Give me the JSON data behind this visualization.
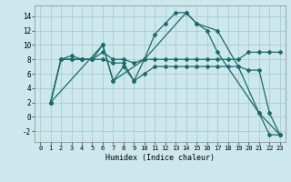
{
  "title": "",
  "xlabel": "Humidex (Indice chaleur)",
  "bg_color": "#cce8ec",
  "grid_color": "#aacccc",
  "line_color": "#1a6b6b",
  "xlim": [
    -0.5,
    23.5
  ],
  "ylim": [
    -3.5,
    15.5
  ],
  "xticks": [
    0,
    1,
    2,
    3,
    4,
    5,
    6,
    7,
    8,
    9,
    10,
    11,
    12,
    13,
    14,
    15,
    16,
    17,
    18,
    19,
    20,
    21,
    22,
    23
  ],
  "yticks": [
    -2,
    0,
    2,
    4,
    6,
    8,
    10,
    12,
    14
  ],
  "lines": [
    {
      "x": [
        1,
        2,
        3,
        4,
        5,
        6,
        7,
        10,
        11,
        12,
        13,
        14,
        15,
        16,
        17,
        21,
        22,
        23
      ],
      "y": [
        2,
        8,
        8,
        8,
        8,
        10,
        5,
        8,
        11.5,
        13,
        14.5,
        14.5,
        13,
        12,
        9,
        0.5,
        -2.5,
        -2.5
      ]
    },
    {
      "x": [
        1,
        2,
        3,
        4,
        5,
        6,
        7,
        8,
        9,
        10,
        11,
        12,
        13,
        14,
        15,
        16,
        17,
        18,
        19,
        20,
        21,
        22,
        23
      ],
      "y": [
        2,
        8,
        8.5,
        8,
        8,
        9,
        8,
        8,
        7.5,
        8,
        8,
        8,
        8,
        8,
        8,
        8,
        8,
        8,
        8,
        9,
        9,
        9,
        9
      ]
    },
    {
      "x": [
        1,
        2,
        3,
        4,
        5,
        6,
        7,
        8,
        9,
        10,
        11,
        12,
        13,
        14,
        15,
        16,
        17,
        18,
        19,
        20,
        21,
        22,
        23
      ],
      "y": [
        2,
        8,
        8,
        8,
        8,
        8,
        7.5,
        7.5,
        5,
        6,
        7,
        7,
        7,
        7,
        7,
        7,
        7,
        7,
        7,
        6.5,
        6.5,
        0.5,
        -2.5
      ]
    },
    {
      "x": [
        1,
        6,
        7,
        8,
        9,
        10,
        14,
        15,
        17,
        19,
        21,
        23
      ],
      "y": [
        2,
        10,
        5,
        7,
        5,
        8,
        14.5,
        13,
        12,
        7,
        0.5,
        -2.5
      ]
    }
  ]
}
